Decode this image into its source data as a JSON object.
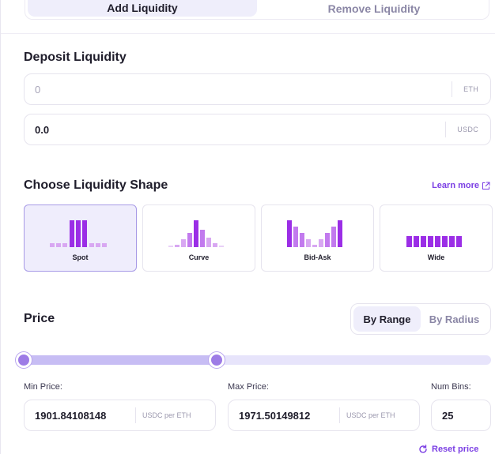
{
  "tabs": {
    "add": "Add Liquidity",
    "remove": "Remove Liquidity"
  },
  "deposit": {
    "title": "Deposit Liquidity",
    "token_a": {
      "value": "",
      "placeholder": "0",
      "unit": "ETH"
    },
    "token_b": {
      "value": "0.0",
      "unit": "USDC"
    }
  },
  "shape": {
    "title": "Choose Liquidity Shape",
    "learn_more": "Learn more",
    "options": [
      {
        "label": "Spot",
        "selected": true
      },
      {
        "label": "Curve",
        "selected": false
      },
      {
        "label": "Bid-Ask",
        "selected": false
      },
      {
        "label": "Wide",
        "selected": false
      }
    ]
  },
  "price": {
    "title": "Price",
    "modes": {
      "range": "By Range",
      "radius": "By Radius",
      "active": "range"
    },
    "slider": {
      "min_fraction": 0.0,
      "max_fraction": 0.42
    },
    "min_label": "Min Price:",
    "max_label": "Max Price:",
    "bins_label": "Num Bins:",
    "min_value": "1901.84108148",
    "max_value": "1971.50149812",
    "unit": "USDC per ETH",
    "num_bins": "25",
    "reset": "Reset price"
  },
  "colors": {
    "accent": "#7b3fe4",
    "bar": "#9b2ee6",
    "bar_light": "#d8a7f2",
    "selected_bg": "#efedfc"
  }
}
